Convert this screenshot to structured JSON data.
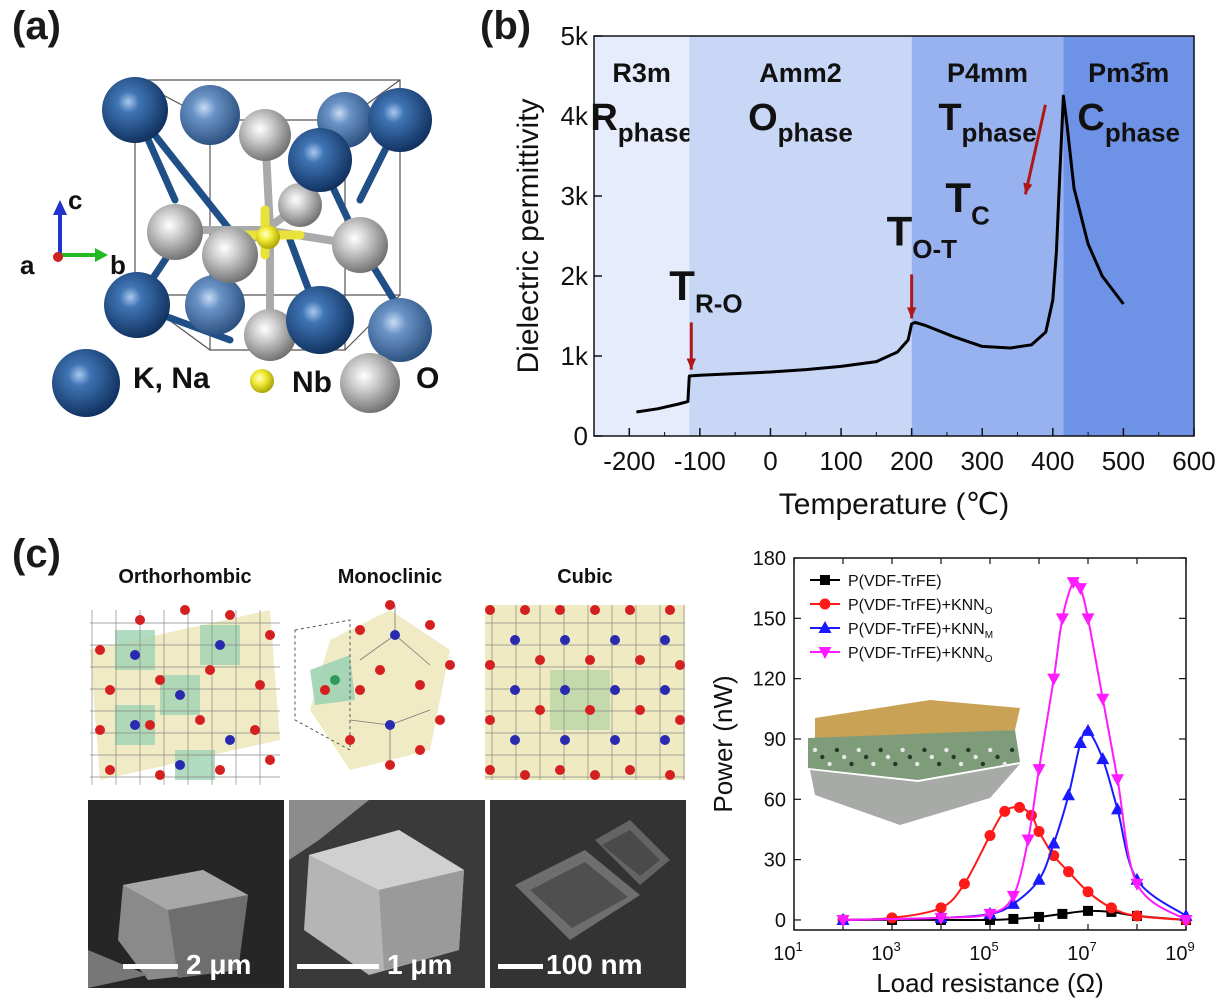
{
  "panel_a": {
    "label": "(a)",
    "axes": {
      "c": "c",
      "a": "a",
      "b": "b"
    },
    "legend": [
      {
        "label": "K, Na",
        "color": "#1f4f86"
      },
      {
        "label": "Nb",
        "color": "#e8e23a"
      },
      {
        "label": "O",
        "color": "#b8b8b8"
      }
    ]
  },
  "panel_b": {
    "label": "(b)",
    "phases": [
      {
        "group": "R3m",
        "symbol": "R",
        "sub": "phase",
        "color": "#e6ecfb"
      },
      {
        "group": "Amm2",
        "symbol": "O",
        "sub": "phase",
        "color": "#c9d7f7"
      },
      {
        "group": "P4mm",
        "symbol": "T",
        "sub": "phase",
        "color": "#98b2ef"
      },
      {
        "group": "Pm3̄m",
        "symbol": "C",
        "sub": "phase",
        "color": "#6e92e6"
      }
    ],
    "transitions": [
      {
        "symbol": "T",
        "sub": "R-O",
        "x": -115
      },
      {
        "symbol": "T",
        "sub": "O-T",
        "x": 200
      },
      {
        "symbol": "T",
        "sub": "C",
        "x": 415
      }
    ]
  },
  "panel_c": {
    "label": "(c)",
    "structures": [
      {
        "title": "Orthorhombic",
        "scale": "2 μm"
      },
      {
        "title": "Monoclinic",
        "scale": "1 μm"
      },
      {
        "title": "Cubic",
        "scale": "100 nm"
      }
    ]
  },
  "chart_data": [
    {
      "type": "line",
      "xlabel": "Temperature (℃)",
      "ylabel": "Dielectric permittivity",
      "xlim": [
        -250,
        600
      ],
      "ylim": [
        0,
        5000
      ],
      "xticks": [
        -200,
        -100,
        0,
        100,
        200,
        300,
        400,
        500,
        600
      ],
      "xtick_labels": [
        "-200",
        "-100",
        "0",
        "100",
        "200",
        "300",
        "400",
        "500",
        "600"
      ],
      "yticks": [
        0,
        1000,
        2000,
        3000,
        4000,
        5000
      ],
      "ytick_labels": [
        "0",
        "1k",
        "2k",
        "3k",
        "4k",
        "5k"
      ],
      "phase_boundaries": [
        -115,
        200,
        415
      ],
      "series": [
        {
          "x": [
            -190,
            -160,
            -130,
            -117,
            -115,
            -100,
            -50,
            0,
            50,
            100,
            150,
            180,
            195,
            200,
            205,
            220,
            260,
            300,
            340,
            370,
            390,
            400,
            405,
            410,
            415,
            420,
            430,
            450,
            470,
            500
          ],
          "y": [
            300,
            340,
            400,
            430,
            750,
            760,
            780,
            800,
            830,
            870,
            930,
            1050,
            1200,
            1400,
            1420,
            1380,
            1240,
            1120,
            1100,
            1140,
            1300,
            1700,
            2300,
            3300,
            4250,
            3900,
            3100,
            2400,
            2000,
            1650
          ]
        }
      ]
    },
    {
      "type": "line",
      "xlabel": "Load resistance (Ω)",
      "ylabel": "Power (nW)",
      "xscale": "log",
      "xlim": [
        10,
        1000000000
      ],
      "ylim": [
        -5,
        180
      ],
      "xticks": [
        10,
        1000,
        100000,
        10000000,
        1000000000
      ],
      "xtick_labels": [
        [
          "10",
          "1"
        ],
        [
          "10",
          "3"
        ],
        [
          "10",
          "5"
        ],
        [
          "10",
          "7"
        ],
        [
          "10",
          "9"
        ]
      ],
      "yticks": [
        0,
        30,
        60,
        90,
        120,
        150,
        180
      ],
      "ytick_labels": [
        "0",
        "30",
        "60",
        "90",
        "120",
        "150",
        "180"
      ],
      "legend": "top-left",
      "series": [
        {
          "name": "P(VDF-TrFE)",
          "legend_sub": "",
          "color": "#000000",
          "marker": "square",
          "x": [
            100,
            1000,
            10000,
            100000,
            300000,
            1000000,
            3000000,
            10000000,
            30000000,
            100000000,
            1000000000
          ],
          "y": [
            0,
            0,
            0,
            0,
            0.5,
            1.5,
            3,
            4.5,
            4,
            2,
            0
          ]
        },
        {
          "name": "P(VDF-TrFE)+KNN",
          "legend_sub": "O",
          "color": "#ff1a1a",
          "marker": "circle",
          "x": [
            100,
            1000,
            10000,
            30000,
            100000,
            200000,
            400000,
            700000,
            1000000,
            2000000,
            4000000,
            10000000,
            30000000,
            100000000,
            1000000000
          ],
          "y": [
            0,
            1,
            6,
            18,
            42,
            54,
            56,
            52,
            44,
            32,
            24,
            14,
            6,
            2,
            0
          ]
        },
        {
          "name": "P(VDF-TrFE)+KNN",
          "legend_sub": "M",
          "color": "#1a1aff",
          "marker": "triangle-up",
          "x": [
            100,
            10000,
            100000,
            300000,
            1000000,
            2000000,
            4000000,
            7000000,
            10000000,
            20000000,
            40000000,
            100000000,
            1000000000
          ],
          "y": [
            0,
            1,
            3,
            8,
            20,
            38,
            62,
            88,
            94,
            80,
            55,
            20,
            2
          ]
        },
        {
          "name": "P(VDF-TrFE)+KNN",
          "legend_sub": "O",
          "color": "#ff1aff",
          "marker": "triangle-down",
          "x": [
            100,
            10000,
            100000,
            300000,
            600000,
            1000000,
            2000000,
            3000000,
            5000000,
            7000000,
            10000000,
            20000000,
            40000000,
            100000000,
            1000000000
          ],
          "y": [
            0,
            1,
            3,
            12,
            40,
            75,
            120,
            150,
            168,
            165,
            150,
            110,
            70,
            18,
            0
          ]
        }
      ]
    }
  ]
}
